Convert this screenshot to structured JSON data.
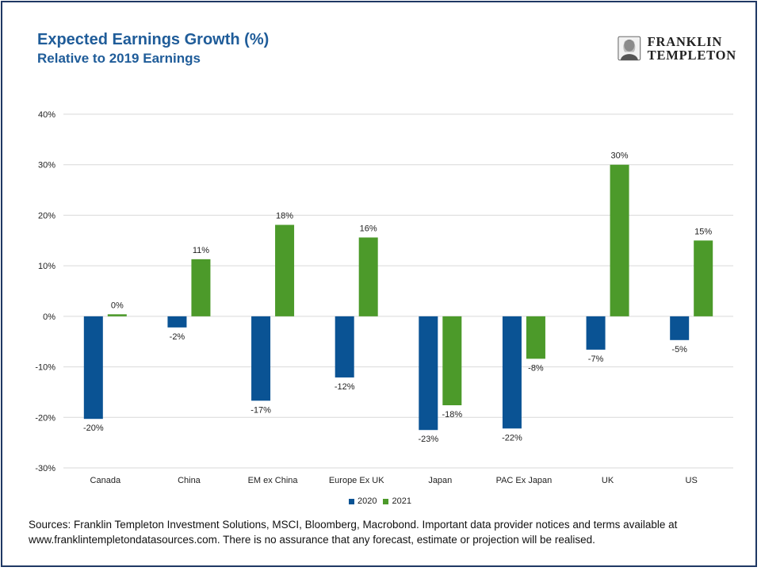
{
  "header": {
    "title": "Expected Earnings Growth (%)",
    "subtitle": "Relative to 2019 Earnings"
  },
  "logo": {
    "line1": "FRANKLIN",
    "line2": "TEMPLETON",
    "icon": "franklin-portrait-icon"
  },
  "colors": {
    "series_2020": "#0a5394",
    "series_2021": "#4c9a2a",
    "frame": "#1f3864",
    "title": "#1f5c99"
  },
  "chart_data": {
    "type": "bar",
    "title": "Expected Earnings Growth (%)",
    "subtitle": "Relative to 2019 Earnings",
    "categories": [
      "Canada",
      "China",
      "EM ex China",
      "Europe Ex UK",
      "Japan",
      "PAC Ex Japan",
      "UK",
      "US"
    ],
    "series": [
      {
        "name": "2020",
        "values": [
          -20.3,
          -2.2,
          -16.7,
          -12.1,
          -22.5,
          -22.2,
          -6.6,
          -4.7
        ],
        "labels": [
          "-20%",
          "-2%",
          "-17%",
          "-12%",
          "-23%",
          "-22%",
          "-7%",
          "-5%"
        ]
      },
      {
        "name": "2021",
        "values": [
          0.4,
          11.3,
          18.1,
          15.6,
          -17.6,
          -8.4,
          30.0,
          15.0
        ],
        "labels": [
          "0%",
          "11%",
          "18%",
          "16%",
          "-18%",
          "-8%",
          "30%",
          "15%"
        ]
      }
    ],
    "ylim": [
      -30,
      40
    ],
    "yticks": [
      40,
      30,
      20,
      10,
      0,
      -10,
      -20,
      -30
    ],
    "ytick_labels": [
      "40%",
      "30%",
      "20%",
      "10%",
      "0%",
      "-10%",
      "-20%",
      "-30%"
    ],
    "grid": true,
    "legend": "bottom-center"
  },
  "footer": {
    "sources_line1": "Sources: Franklin Templeton Investment Solutions, MSCI, Bloomberg, Macrobond. Important data provider notices and terms available at",
    "sources_line2": "www.franklintempletondatasources.com. There is no assurance that  any forecast, estimate or projection will be realised."
  }
}
